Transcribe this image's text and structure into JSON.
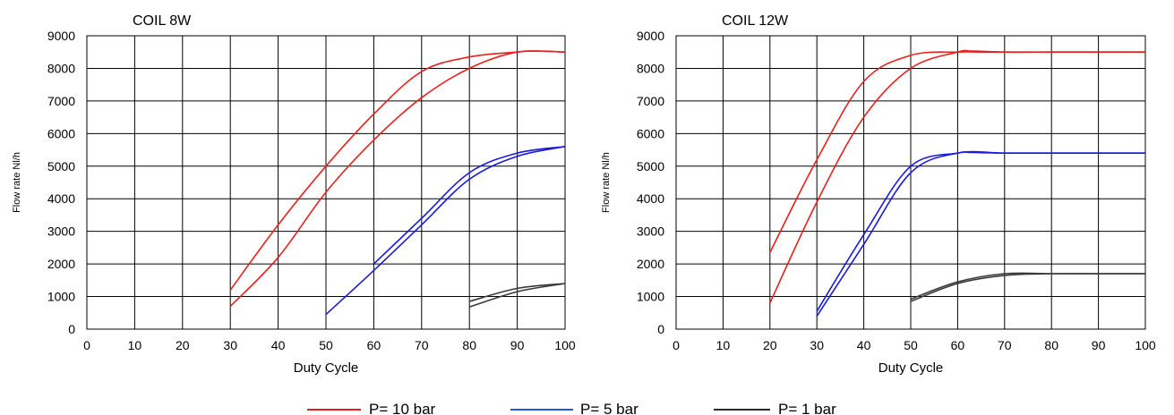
{
  "chart_data": [
    {
      "type": "line",
      "title": "COIL 8W",
      "xlabel": "Duty Cycle",
      "ylabel": "Flow rate Nl/h",
      "xlim": [
        0,
        100
      ],
      "ylim": [
        0,
        9000
      ],
      "xticks": [
        0,
        10,
        20,
        30,
        40,
        50,
        60,
        70,
        80,
        90,
        100
      ],
      "yticks": [
        0,
        1000,
        2000,
        3000,
        4000,
        5000,
        6000,
        7000,
        8000,
        9000
      ],
      "grid": true,
      "series": [
        {
          "name": "P= 10 bar",
          "color": "#e8201c",
          "x": [
            30,
            40,
            50,
            60,
            70,
            80,
            90,
            93,
            100
          ],
          "y": [
            1200,
            3200,
            5000,
            6600,
            7900,
            8350,
            8500,
            8530,
            8500
          ]
        },
        {
          "name": "P= 10 bar",
          "color": "#e8201c",
          "x": [
            30,
            40,
            50,
            60,
            70,
            80,
            90,
            100
          ],
          "y": [
            700,
            2200,
            4200,
            5800,
            7100,
            8000,
            8500,
            8500
          ]
        },
        {
          "name": "P= 5 bar",
          "color": "#1a1adb",
          "x": [
            60,
            70,
            80,
            90,
            100
          ],
          "y": [
            2000,
            3400,
            4800,
            5400,
            5600
          ]
        },
        {
          "name": "P= 5 bar",
          "color": "#1a1adb",
          "x": [
            50,
            60,
            70,
            80,
            90,
            100
          ],
          "y": [
            450,
            1800,
            3200,
            4600,
            5300,
            5600
          ]
        },
        {
          "name": "P= 1 bar",
          "color": "#3a3a3a",
          "x": [
            80,
            90,
            100
          ],
          "y": [
            850,
            1250,
            1400
          ]
        },
        {
          "name": "P= 1 bar",
          "color": "#3a3a3a",
          "x": [
            80,
            90,
            100
          ],
          "y": [
            680,
            1150,
            1400
          ]
        }
      ]
    },
    {
      "type": "line",
      "title": "COIL 12W",
      "xlabel": "Duty Cycle",
      "ylabel": "Flow rate Nl/h",
      "xlim": [
        0,
        100
      ],
      "ylim": [
        0,
        9000
      ],
      "xticks": [
        0,
        10,
        20,
        30,
        40,
        50,
        60,
        70,
        80,
        90,
        100
      ],
      "yticks": [
        0,
        1000,
        2000,
        3000,
        4000,
        5000,
        6000,
        7000,
        8000,
        9000
      ],
      "grid": true,
      "series": [
        {
          "name": "P= 10 bar",
          "color": "#e8201c",
          "x": [
            20,
            30,
            40,
            50,
            60,
            65,
            70,
            80,
            90,
            100
          ],
          "y": [
            2350,
            5200,
            7600,
            8400,
            8500,
            8500,
            8500,
            8500,
            8500,
            8500
          ]
        },
        {
          "name": "P= 10 bar",
          "color": "#e8201c",
          "x": [
            20,
            30,
            40,
            50,
            60,
            63,
            70,
            80,
            90,
            100
          ],
          "y": [
            800,
            3900,
            6500,
            8000,
            8500,
            8530,
            8500,
            8500,
            8500,
            8500
          ]
        },
        {
          "name": "P= 5 bar",
          "color": "#1a1adb",
          "x": [
            30,
            40,
            50,
            60,
            63,
            70,
            80,
            90,
            100
          ],
          "y": [
            550,
            2900,
            5000,
            5400,
            5420,
            5400,
            5400,
            5400,
            5400
          ]
        },
        {
          "name": "P= 5 bar",
          "color": "#1a1adb",
          "x": [
            30,
            40,
            50,
            60,
            70,
            80,
            90,
            100
          ],
          "y": [
            400,
            2600,
            4800,
            5400,
            5400,
            5400,
            5400,
            5400
          ]
        },
        {
          "name": "P= 1 bar",
          "color": "#3a3a3a",
          "x": [
            50,
            60,
            70,
            80,
            90,
            100
          ],
          "y": [
            920,
            1450,
            1700,
            1700,
            1700,
            1700
          ]
        },
        {
          "name": "P= 1 bar",
          "color": "#3a3a3a",
          "x": [
            50,
            60,
            70,
            80,
            90,
            100
          ],
          "y": [
            850,
            1400,
            1650,
            1700,
            1700,
            1700
          ]
        }
      ]
    }
  ],
  "legend": {
    "placement": "bottom",
    "items": [
      {
        "label": "P= 10 bar",
        "color": "#e8201c"
      },
      {
        "label": "P= 5 bar",
        "color": "#1a5fd6"
      },
      {
        "label": "P= 1 bar",
        "color": "#2a2a2a"
      }
    ]
  }
}
